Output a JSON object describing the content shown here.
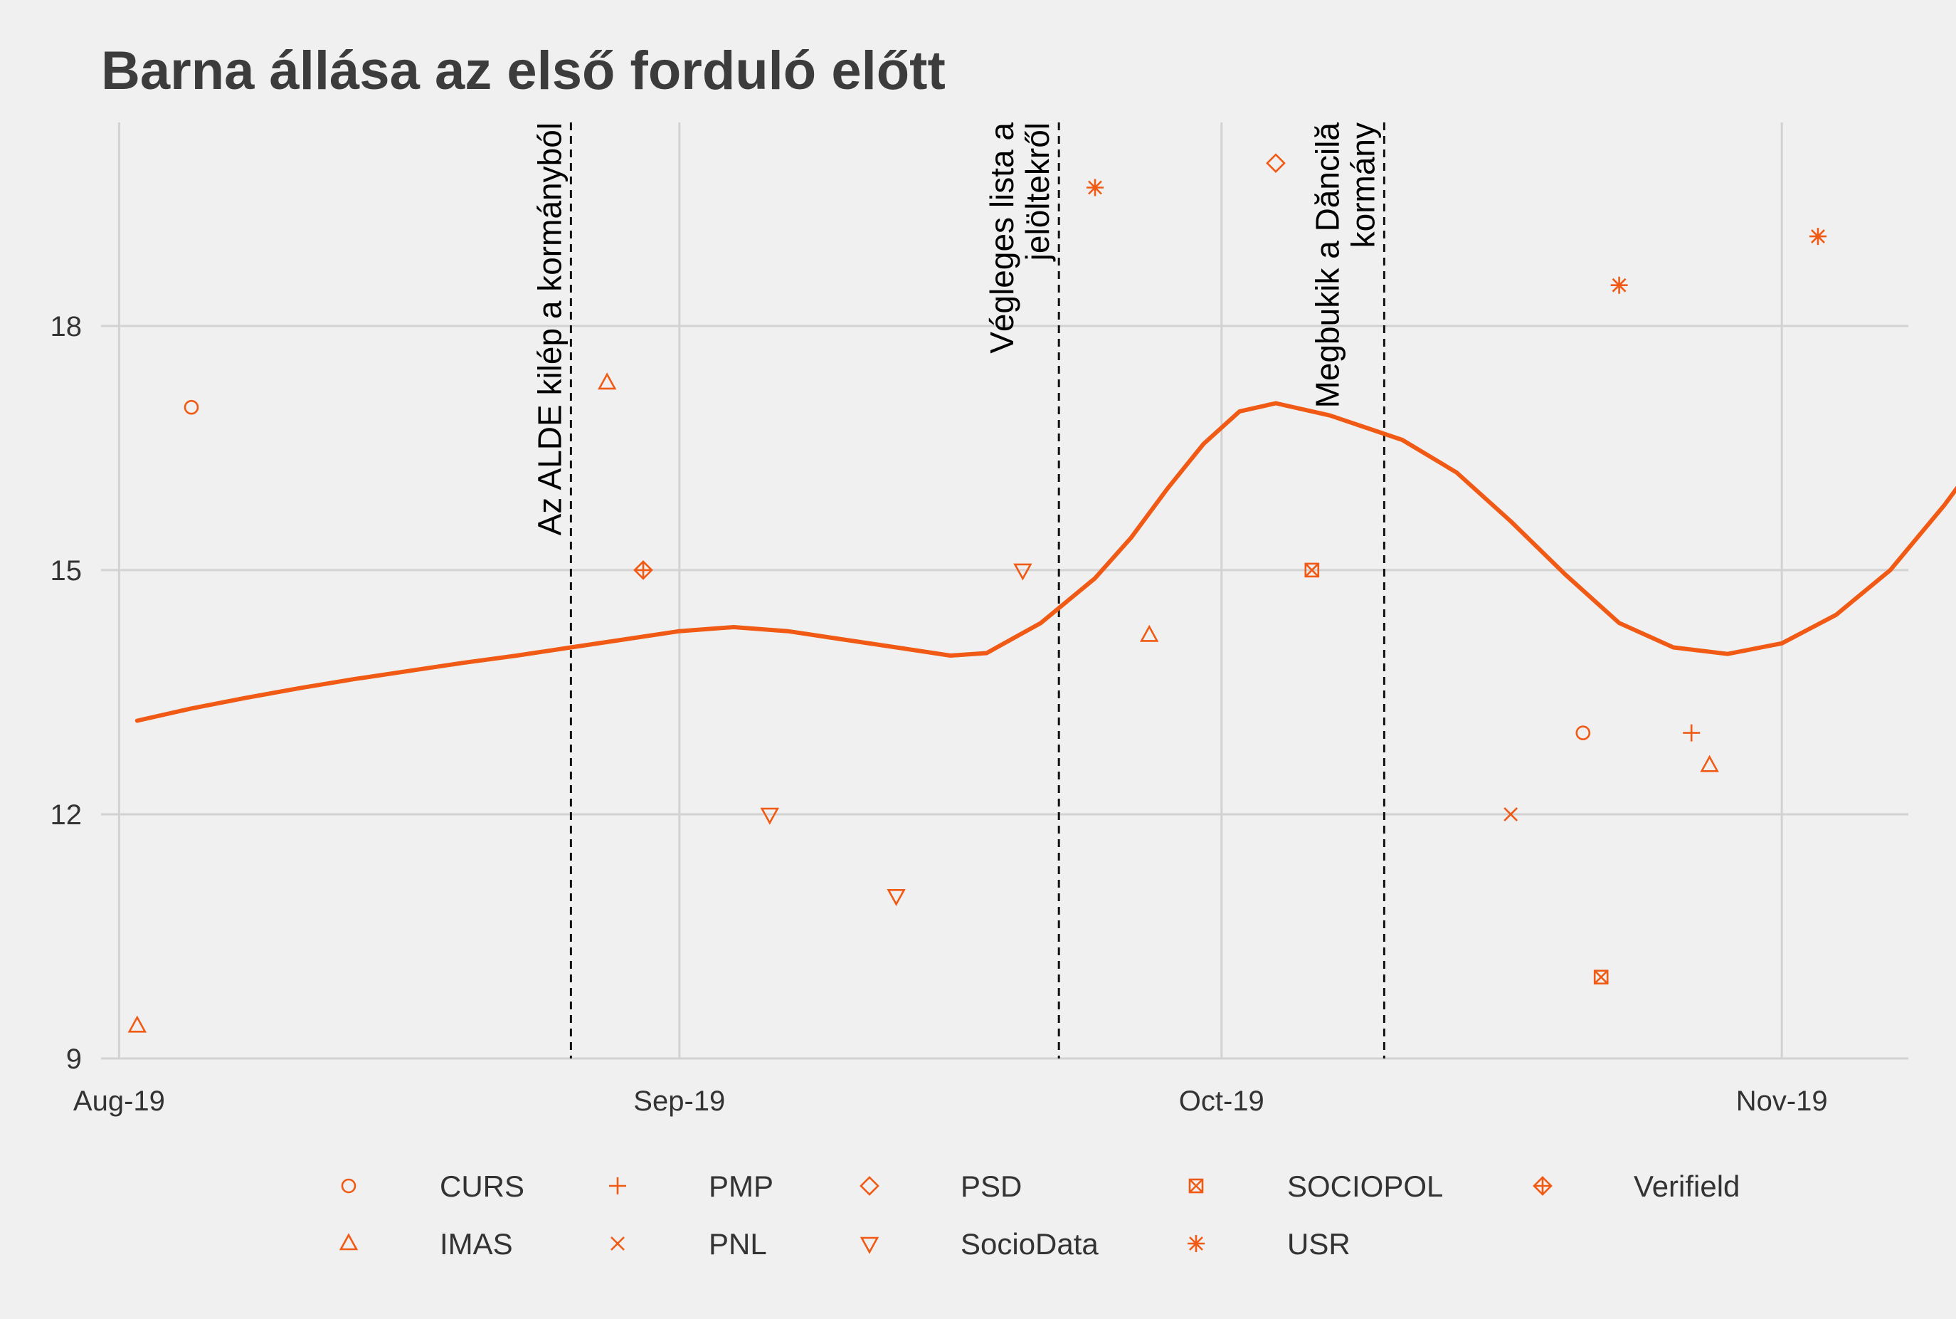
{
  "chart_data": {
    "type": "scatter",
    "title": "Barna állása az első forduló előtt",
    "xlabel": "",
    "ylabel": "",
    "x_axis": {
      "min": "2019-07-31",
      "max": "2019-11-08",
      "ticks": [
        "2019-08-01",
        "2019-09-01",
        "2019-10-01",
        "2019-11-01"
      ],
      "tick_labels": [
        "Aug-19",
        "Sep-19",
        "Oct-19",
        "Nov-19"
      ]
    },
    "y_axis": {
      "min": 9,
      "max": 20.5,
      "ticks": [
        9,
        12,
        15,
        18
      ],
      "tick_labels": [
        "9",
        "12",
        "15",
        "18"
      ]
    },
    "grid": true,
    "legend_position": "bottom",
    "accent_color": "#f05a14",
    "series": [
      {
        "name": "CURS",
        "marker": "circle",
        "points": [
          {
            "x": "2019-08-05",
            "y": 17
          },
          {
            "x": "2019-10-21",
            "y": 13
          }
        ]
      },
      {
        "name": "IMAS",
        "marker": "triangle-up",
        "points": [
          {
            "x": "2019-08-02",
            "y": 9.4
          },
          {
            "x": "2019-08-28",
            "y": 17.3
          },
          {
            "x": "2019-09-27",
            "y": 14.2
          },
          {
            "x": "2019-10-28",
            "y": 12.6
          }
        ]
      },
      {
        "name": "PMP",
        "marker": "plus",
        "points": [
          {
            "x": "2019-10-27",
            "y": 13
          }
        ]
      },
      {
        "name": "PNL",
        "marker": "cross",
        "points": [
          {
            "x": "2019-10-17",
            "y": 12
          }
        ]
      },
      {
        "name": "PSD",
        "marker": "diamond",
        "points": [
          {
            "x": "2019-10-04",
            "y": 20.0
          }
        ]
      },
      {
        "name": "SocioData",
        "marker": "triangle-down",
        "points": [
          {
            "x": "2019-09-06",
            "y": 12
          },
          {
            "x": "2019-09-13",
            "y": 11
          },
          {
            "x": "2019-09-20",
            "y": 15
          }
        ]
      },
      {
        "name": "SOCIOPOL",
        "marker": "square-cross",
        "points": [
          {
            "x": "2019-10-06",
            "y": 15
          },
          {
            "x": "2019-10-22",
            "y": 10
          }
        ]
      },
      {
        "name": "USR",
        "marker": "asterisk",
        "points": [
          {
            "x": "2019-09-24",
            "y": 19.7
          },
          {
            "x": "2019-10-23",
            "y": 18.5
          },
          {
            "x": "2019-11-03",
            "y": 19.1
          }
        ]
      },
      {
        "name": "Verifield",
        "marker": "diamond-plus",
        "points": [
          {
            "x": "2019-08-30",
            "y": 15
          }
        ]
      }
    ],
    "trend_line": {
      "points": [
        {
          "x": "2019-08-02",
          "y": 13.15
        },
        {
          "x": "2019-08-05",
          "y": 13.3
        },
        {
          "x": "2019-08-08",
          "y": 13.43
        },
        {
          "x": "2019-08-11",
          "y": 13.55
        },
        {
          "x": "2019-08-14",
          "y": 13.66
        },
        {
          "x": "2019-08-17",
          "y": 13.76
        },
        {
          "x": "2019-08-20",
          "y": 13.86
        },
        {
          "x": "2019-08-23",
          "y": 13.95
        },
        {
          "x": "2019-08-26",
          "y": 14.05
        },
        {
          "x": "2019-08-29",
          "y": 14.15
        },
        {
          "x": "2019-09-01",
          "y": 14.25
        },
        {
          "x": "2019-09-04",
          "y": 14.3
        },
        {
          "x": "2019-09-07",
          "y": 14.25
        },
        {
          "x": "2019-09-10",
          "y": 14.15
        },
        {
          "x": "2019-09-13",
          "y": 14.05
        },
        {
          "x": "2019-09-16",
          "y": 13.95
        },
        {
          "x": "2019-09-18",
          "y": 13.98
        },
        {
          "x": "2019-09-21",
          "y": 14.35
        },
        {
          "x": "2019-09-24",
          "y": 14.9
        },
        {
          "x": "2019-09-26",
          "y": 15.4
        },
        {
          "x": "2019-09-28",
          "y": 16.0
        },
        {
          "x": "2019-09-30",
          "y": 16.55
        },
        {
          "x": "2019-10-02",
          "y": 16.95
        },
        {
          "x": "2019-10-04",
          "y": 17.05
        },
        {
          "x": "2019-10-07",
          "y": 16.9
        },
        {
          "x": "2019-10-11",
          "y": 16.6
        },
        {
          "x": "2019-10-14",
          "y": 16.2
        },
        {
          "x": "2019-10-17",
          "y": 15.6
        },
        {
          "x": "2019-10-20",
          "y": 14.95
        },
        {
          "x": "2019-10-23",
          "y": 14.35
        },
        {
          "x": "2019-10-26",
          "y": 14.05
        },
        {
          "x": "2019-10-29",
          "y": 13.97
        },
        {
          "x": "2019-11-01",
          "y": 14.1
        },
        {
          "x": "2019-11-04",
          "y": 14.45
        },
        {
          "x": "2019-11-07",
          "y": 15.0
        },
        {
          "x": "2019-11-10",
          "y": 15.8
        },
        {
          "x": "2019-11-12",
          "y": 16.4
        }
      ]
    },
    "annotations": [
      {
        "x": "2019-08-26",
        "label_lines": [
          "Az ALDE kilép a kormányból"
        ]
      },
      {
        "x": "2019-09-22",
        "label_lines": [
          "Végleges lista a",
          "jelöltekről"
        ]
      },
      {
        "x": "2019-10-10",
        "label_lines": [
          "Megbukik a Dăncilă",
          "kormány"
        ]
      }
    ]
  }
}
